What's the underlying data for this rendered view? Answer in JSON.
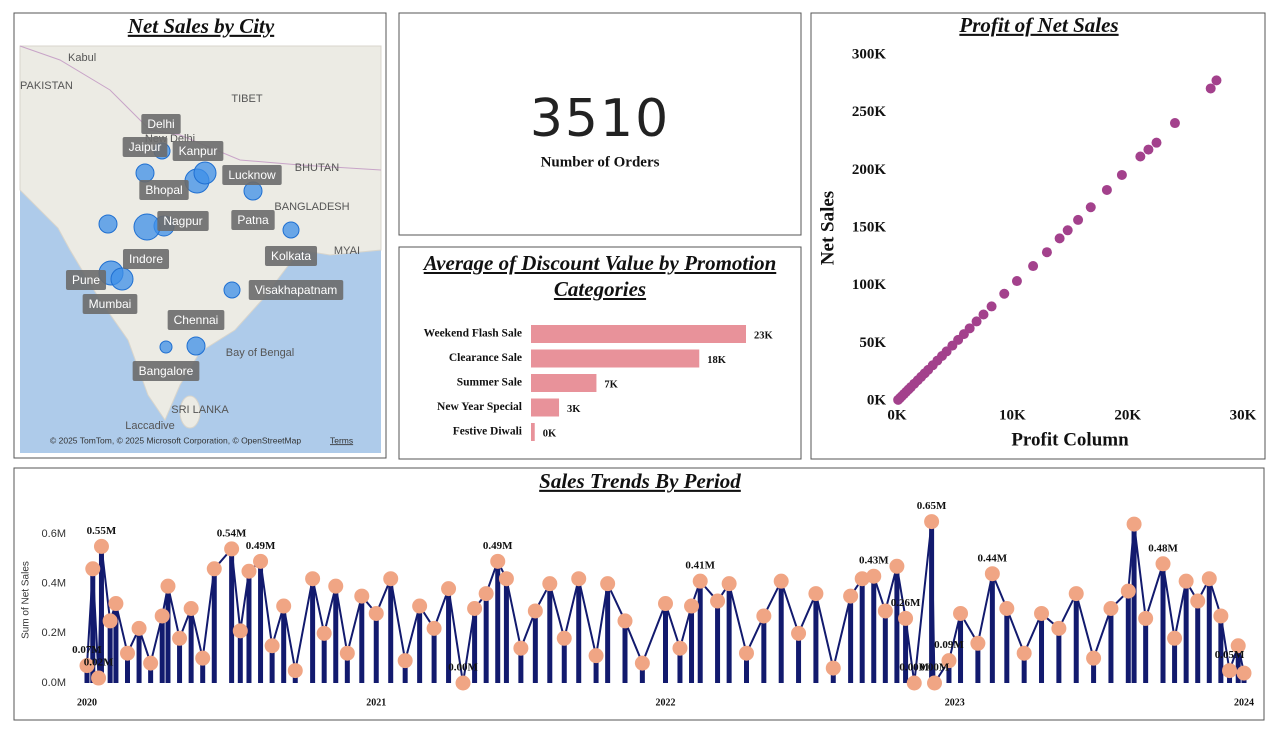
{
  "map": {
    "title": "Net Sales by City",
    "cities": [
      {
        "name": "Delhi",
        "net_sales": 320000
      },
      {
        "name": "Jaipur",
        "net_sales": 405000
      },
      {
        "name": "Kanpur",
        "net_sales": 720000
      },
      {
        "name": "Lucknow",
        "net_sales": 605000
      },
      {
        "name": "Bhopal",
        "net_sales": 500000
      },
      {
        "name": "Nagpur",
        "net_sales": 845000
      },
      {
        "name": "Patna",
        "net_sales": 405000
      },
      {
        "name": "Indore",
        "net_sales": 405000
      },
      {
        "name": "Kolkata",
        "net_sales": 320000
      },
      {
        "name": "Pune",
        "net_sales": 720000
      },
      {
        "name": "Mumbai",
        "net_sales": 605000
      },
      {
        "name": "Visakhapatnam",
        "net_sales": 320000
      },
      {
        "name": "Chennai",
        "net_sales": 405000
      },
      {
        "name": "Bangalore",
        "net_sales": 180000
      }
    ],
    "bubble_color": "#3d8fe8",
    "place_labels": [
      "Kabul",
      "PAKISTAN",
      "TIBET",
      "New Delhi",
      "BHUTAN",
      "BANGLADESH",
      "MYAI",
      "Bay of Bengal",
      "SRI LANKA",
      "Laccadive"
    ],
    "attribution": "© 2025 TomTom, © 2025 Microsoft Corporation, © OpenStreetMap",
    "terms": "Terms"
  },
  "kpi": {
    "value": 3510,
    "label": "Number of Orders"
  },
  "chart_data": [
    {
      "type": "bar",
      "title": "Average of Discount Value by Promotion Categories",
      "categories": [
        "Weekend Flash Sale",
        "Clearance Sale",
        "Summer Sale",
        "New Year Special",
        "Festive Diwali"
      ],
      "values": [
        23000,
        18000,
        7000,
        3000,
        400
      ],
      "value_labels": [
        "23K",
        "18K",
        "7K",
        "3K",
        "0K"
      ],
      "color": "#e8929a"
    },
    {
      "type": "scatter",
      "title": "Profit of Net Sales",
      "x_label": "Profit Column",
      "y_label": "Net Sales",
      "x": [
        27700,
        27200,
        24100,
        22500,
        21800,
        21100,
        19500,
        18200,
        16800,
        15700,
        14800,
        14100,
        13000,
        11800,
        10400,
        9300,
        8200,
        7500,
        6900,
        6300,
        5800,
        5300,
        4800,
        4300,
        3900,
        3500,
        3100,
        2700,
        2400,
        2100,
        1800,
        1500,
        1200,
        1000,
        800,
        600,
        400,
        250,
        100
      ],
      "y": [
        278000,
        271000,
        241000,
        224000,
        218000,
        212000,
        196000,
        183000,
        168000,
        157000,
        148000,
        141000,
        129000,
        117000,
        104000,
        93000,
        82000,
        75000,
        69000,
        63000,
        58000,
        53000,
        48000,
        43000,
        39000,
        35000,
        31000,
        27000,
        24000,
        21000,
        18000,
        15000,
        12000,
        10000,
        8000,
        6000,
        4000,
        2500,
        1000
      ],
      "color": "#a3418c",
      "xlim": [
        0,
        30000
      ],
      "xticks": [
        {
          "value": 0,
          "label": "0K"
        },
        {
          "value": 10000,
          "label": "10K"
        },
        {
          "value": 20000,
          "label": "20K"
        },
        {
          "value": 30000,
          "label": "30K"
        }
      ],
      "ylim": [
        0,
        300000
      ],
      "yticks": [
        {
          "value": 0,
          "label": "0K"
        },
        {
          "value": 50000,
          "label": "50K"
        },
        {
          "value": 100000,
          "label": "100K"
        },
        {
          "value": 150000,
          "label": "150K"
        },
        {
          "value": 200000,
          "label": "200K"
        },
        {
          "value": 250000,
          "label": "250K"
        },
        {
          "value": 300000,
          "label": "300K"
        }
      ]
    },
    {
      "type": "line",
      "title": "Sales Trends By Period",
      "y_label": "Sum of Net Sales",
      "x": [
        2020.0,
        2020.02,
        2020.04,
        2020.05,
        2020.08,
        2020.1,
        2020.14,
        2020.18,
        2020.22,
        2020.26,
        2020.28,
        2020.32,
        2020.36,
        2020.4,
        2020.44,
        2020.5,
        2020.53,
        2020.56,
        2020.6,
        2020.64,
        2020.68,
        2020.72,
        2020.78,
        2020.82,
        2020.86,
        2020.9,
        2020.95,
        2021.0,
        2021.05,
        2021.1,
        2021.15,
        2021.2,
        2021.25,
        2021.3,
        2021.34,
        2021.38,
        2021.42,
        2021.45,
        2021.5,
        2021.55,
        2021.6,
        2021.65,
        2021.7,
        2021.76,
        2021.8,
        2021.86,
        2021.92,
        2022.0,
        2022.05,
        2022.09,
        2022.12,
        2022.18,
        2022.22,
        2022.28,
        2022.34,
        2022.4,
        2022.46,
        2022.52,
        2022.58,
        2022.64,
        2022.68,
        2022.72,
        2022.76,
        2022.8,
        2022.83,
        2022.86,
        2022.92,
        2022.93,
        2022.98,
        2023.02,
        2023.08,
        2023.13,
        2023.18,
        2023.24,
        2023.3,
        2023.36,
        2023.42,
        2023.48,
        2023.54,
        2023.6,
        2023.62,
        2023.66,
        2023.72,
        2023.76,
        2023.8,
        2023.84,
        2023.88,
        2023.92,
        2023.95,
        2023.98,
        2024.0
      ],
      "values": [
        70000,
        460000,
        20000,
        550000,
        250000,
        320000,
        120000,
        220000,
        80000,
        270000,
        390000,
        180000,
        300000,
        100000,
        460000,
        540000,
        210000,
        450000,
        490000,
        150000,
        310000,
        50000,
        420000,
        200000,
        390000,
        120000,
        350000,
        280000,
        420000,
        90000,
        310000,
        220000,
        380000,
        0,
        300000,
        360000,
        490000,
        420000,
        140000,
        290000,
        400000,
        180000,
        420000,
        110000,
        400000,
        250000,
        80000,
        320000,
        140000,
        310000,
        410000,
        330000,
        400000,
        120000,
        270000,
        410000,
        200000,
        360000,
        60000,
        350000,
        420000,
        430000,
        290000,
        470000,
        260000,
        0,
        650000,
        0,
        90000,
        280000,
        160000,
        440000,
        300000,
        120000,
        280000,
        220000,
        360000,
        100000,
        300000,
        370000,
        640000,
        260000,
        480000,
        180000,
        410000,
        330000,
        420000,
        270000,
        50000,
        150000,
        40000
      ],
      "value_labels": [
        "0.07M",
        null,
        "0.02M",
        "0.55M",
        null,
        null,
        null,
        null,
        null,
        null,
        null,
        null,
        null,
        null,
        null,
        "0.54M",
        null,
        null,
        "0.49M",
        null,
        null,
        null,
        null,
        null,
        null,
        null,
        null,
        null,
        null,
        null,
        null,
        null,
        null,
        "0.00M",
        null,
        null,
        "0.49M",
        null,
        null,
        null,
        null,
        null,
        null,
        null,
        null,
        null,
        null,
        null,
        null,
        null,
        "0.41M",
        null,
        null,
        null,
        null,
        null,
        null,
        null,
        null,
        null,
        null,
        "0.43M",
        null,
        null,
        "0.26M",
        "0.00M",
        "0.65M",
        "0.00M",
        "0.09M",
        null,
        null,
        "0.44M",
        null,
        null,
        null,
        null,
        null,
        null,
        null,
        null,
        null,
        null,
        "0.48M",
        null,
        null,
        null,
        null,
        null,
        "0.05M",
        null,
        null
      ],
      "color": "#121a6e",
      "marker_color": "#f0a584",
      "xlim": [
        2020,
        2024
      ],
      "xticks": [
        2020,
        2021,
        2022,
        2023,
        2024
      ],
      "ylim": [
        0,
        650000
      ],
      "yticks": [
        {
          "value": 0,
          "label": "0.0M"
        },
        {
          "value": 200000,
          "label": "0.2M"
        },
        {
          "value": 400000,
          "label": "0.4M"
        },
        {
          "value": 600000,
          "label": "0.6M"
        }
      ]
    }
  ]
}
